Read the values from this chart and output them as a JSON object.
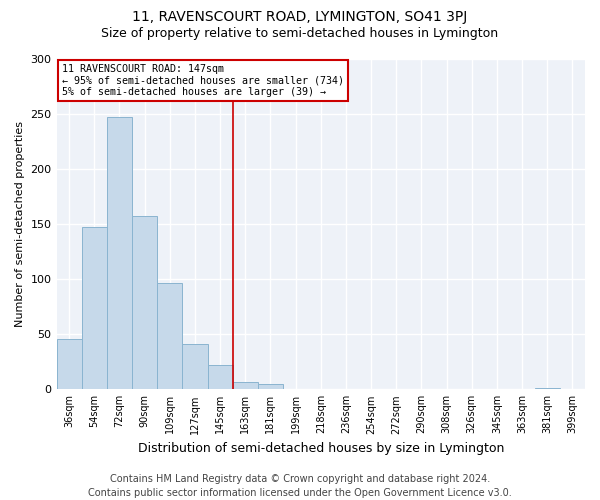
{
  "title": "11, RAVENSCOURT ROAD, LYMINGTON, SO41 3PJ",
  "subtitle": "Size of property relative to semi-detached houses in Lymington",
  "xlabel": "Distribution of semi-detached houses by size in Lymington",
  "ylabel": "Number of semi-detached properties",
  "categories": [
    "36sqm",
    "54sqm",
    "72sqm",
    "90sqm",
    "109sqm",
    "127sqm",
    "145sqm",
    "163sqm",
    "181sqm",
    "199sqm",
    "218sqm",
    "236sqm",
    "254sqm",
    "272sqm",
    "290sqm",
    "308sqm",
    "326sqm",
    "345sqm",
    "363sqm",
    "381sqm",
    "399sqm"
  ],
  "values": [
    46,
    147,
    247,
    157,
    97,
    41,
    22,
    7,
    5,
    0,
    0,
    0,
    0,
    0,
    0,
    0,
    0,
    0,
    0,
    1,
    0
  ],
  "bar_color": "#c6d9ea",
  "bar_edge_color": "#8ab4d0",
  "annotation_line1": "11 RAVENSCOURT ROAD: 147sqm",
  "annotation_line2": "← 95% of semi-detached houses are smaller (734)",
  "annotation_line3": "5% of semi-detached houses are larger (39) →",
  "vline_color": "#cc0000",
  "annotation_box_facecolor": "#ffffff",
  "annotation_box_edgecolor": "#cc0000",
  "footer_line1": "Contains HM Land Registry data © Crown copyright and database right 2024.",
  "footer_line2": "Contains public sector information licensed under the Open Government Licence v3.0.",
  "ylim": [
    0,
    300
  ],
  "yticks": [
    0,
    50,
    100,
    150,
    200,
    250,
    300
  ],
  "bg_color": "#ffffff",
  "plot_bg_color": "#eef2f8",
  "grid_color": "#ffffff",
  "title_fontsize": 10,
  "subtitle_fontsize": 9,
  "ylabel_fontsize": 8,
  "xlabel_fontsize": 9,
  "tick_fontsize": 7,
  "footer_fontsize": 7,
  "vline_x_index": 6
}
